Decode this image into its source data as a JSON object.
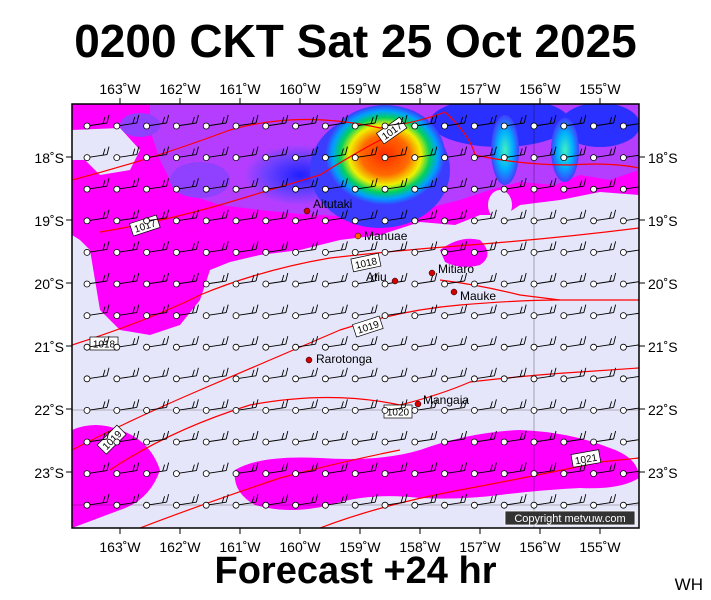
{
  "title": "0200 CKT Sat 25 Oct 2025",
  "subtitle": "Forecast +24 hr",
  "corner_label": "WH",
  "copyright": "Copyright metvuw.com",
  "colors": {
    "background": "#e6e6fa",
    "rain_light": "#ff00ff",
    "rain_blue": "#4040ff",
    "rain_green": "#00d060",
    "rain_yellow": "#f0f000",
    "rain_red": "#ff3000",
    "isobar": "#ff0000",
    "coast_dot": "#d40000"
  },
  "lon_labels": [
    "163˚W",
    "162˚W",
    "161˚W",
    "160˚W",
    "159˚W",
    "158˚W",
    "157˚W",
    "156˚W",
    "155˚W"
  ],
  "lat_labels": [
    "18˚S",
    "19˚S",
    "20˚S",
    "21˚S",
    "22˚S",
    "23˚S"
  ],
  "places": [
    {
      "name": "Aitutaki"
    },
    {
      "name": "Manuae"
    },
    {
      "name": "Atiu"
    },
    {
      "name": "Mitiaro"
    },
    {
      "name": "Mauke"
    },
    {
      "name": "Rarotonga"
    },
    {
      "name": "Mangaia"
    }
  ],
  "isobars": [
    {
      "label": "1017"
    },
    {
      "label": "1017"
    },
    {
      "label": "1018"
    },
    {
      "label": "1018"
    },
    {
      "label": "1019"
    },
    {
      "label": "1019"
    },
    {
      "label": "1020"
    },
    {
      "label": "1021"
    }
  ]
}
